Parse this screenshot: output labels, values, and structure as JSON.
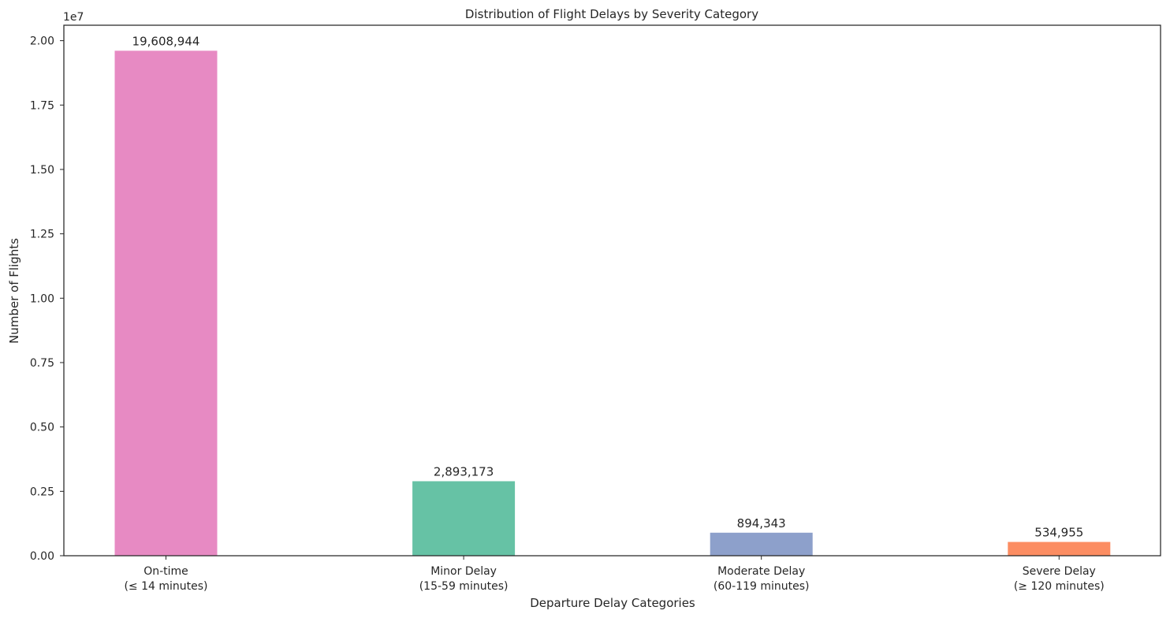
{
  "chart_data": {
    "type": "bar",
    "title": "Distribution of Flight Delays by Severity Category",
    "xlabel": "Departure Delay Categories",
    "ylabel": "Number of Flights",
    "offset_label": "1e7",
    "ylim": [
      0,
      20600000
    ],
    "yticks": [
      0,
      2500000,
      5000000,
      7500000,
      10000000,
      12500000,
      15000000,
      17500000,
      20000000
    ],
    "ytick_labels": [
      "0.00",
      "0.25",
      "0.50",
      "0.75",
      "1.00",
      "1.25",
      "1.50",
      "1.75",
      "2.00"
    ],
    "grid": false,
    "categories": [
      {
        "line1": "On-time",
        "line2": "(≤ 14 minutes)"
      },
      {
        "line1": "Minor Delay",
        "line2": "(15-59 minutes)"
      },
      {
        "line1": "Moderate Delay",
        "line2": "(60-119 minutes)"
      },
      {
        "line1": "Severe Delay",
        "line2": "(≥ 120 minutes)"
      }
    ],
    "values": [
      19608944,
      2893173,
      894343,
      534955
    ],
    "value_labels": [
      "19,608,944",
      "2,893,173",
      "894,343",
      "534,955"
    ],
    "colors": [
      "#e78ac3",
      "#66c2a5",
      "#8da0cb",
      "#fc8d62"
    ]
  }
}
